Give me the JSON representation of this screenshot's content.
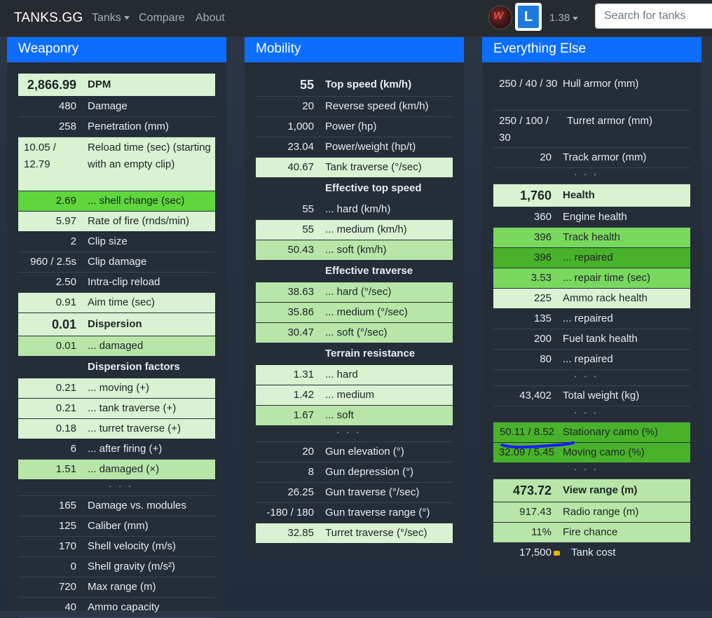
{
  "navbar": {
    "brand": "TANKS.GG",
    "tanks": "Tanks",
    "compare": "Compare",
    "about": "About",
    "l_badge": "L",
    "version": "1.38",
    "search_placeholder": "Search for tanks",
    "icons": [
      "wargaming-logo-icon",
      "caret-down-icon"
    ]
  },
  "colors": {
    "brand_blue": "#0d6efd",
    "highlight_pale": "#d8f2d2",
    "highlight_light": "#b7e6a8",
    "highlight_mid": "#79d85e",
    "highlight_bright": "#5ed63c",
    "highlight_dark": "#48b32a",
    "annotation": "#1a1aff"
  },
  "weaponry": {
    "title": "Weaponry",
    "rows": [
      {
        "value": "2,866.99",
        "label": "DPM"
      },
      {
        "value": "480",
        "label": "Damage"
      },
      {
        "value": "258",
        "label": "Penetration (mm)"
      },
      {
        "value": "10.05 / 12.79",
        "label": "Reload time (sec) (starting with an empty clip)"
      },
      {
        "value": "2.69",
        "label": "... shell change (sec)"
      },
      {
        "value": "5.97",
        "label": "Rate of fire (rnds/min)"
      },
      {
        "value": "2",
        "label": "Clip size"
      },
      {
        "value": "960 / 2.5s",
        "label": "Clip damage"
      },
      {
        "value": "2.50",
        "label": "Intra-clip reload"
      },
      {
        "value": "0.91",
        "label": "Aim time (sec)"
      },
      {
        "value": "0.01",
        "label": "Dispersion"
      },
      {
        "value": "0.01",
        "label": "... damaged"
      },
      {
        "value": "",
        "label": "Dispersion factors"
      },
      {
        "value": "0.21",
        "label": "... moving (+)"
      },
      {
        "value": "0.21",
        "label": "... tank traverse (+)"
      },
      {
        "value": "0.18",
        "label": "... turret traverse (+)"
      },
      {
        "value": "6",
        "label": "... after firing (+)"
      },
      {
        "value": "1.51",
        "label": "... damaged (×)"
      },
      {
        "value": "",
        "label": "· · ·"
      },
      {
        "value": "165",
        "label": "Damage vs. modules"
      },
      {
        "value": "125",
        "label": "Caliber (mm)"
      },
      {
        "value": "170",
        "label": "Shell velocity (m/s)"
      },
      {
        "value": "0",
        "label": "Shell gravity (m/s²)"
      },
      {
        "value": "720",
        "label": "Max range (m)"
      },
      {
        "value": "40",
        "label": "Ammo capacity"
      }
    ]
  },
  "mobility": {
    "title": "Mobility",
    "rows": [
      {
        "value": "55",
        "label": "Top speed (km/h)"
      },
      {
        "value": "20",
        "label": "Reverse speed (km/h)"
      },
      {
        "value": "1,000",
        "label": "Power (hp)"
      },
      {
        "value": "23.04",
        "label": "Power/weight (hp/t)"
      },
      {
        "value": "40.67",
        "label": "Tank traverse (°/sec)"
      },
      {
        "value": "",
        "label": "Effective top speed"
      },
      {
        "value": "55",
        "label": "... hard (km/h)"
      },
      {
        "value": "55",
        "label": "... medium (km/h)"
      },
      {
        "value": "50.43",
        "label": "... soft (km/h)"
      },
      {
        "value": "",
        "label": "Effective traverse"
      },
      {
        "value": "38.63",
        "label": "... hard (°/sec)"
      },
      {
        "value": "35.86",
        "label": "... medium (°/sec)"
      },
      {
        "value": "30.47",
        "label": "... soft (°/sec)"
      },
      {
        "value": "",
        "label": "Terrain resistance"
      },
      {
        "value": "1.31",
        "label": "... hard"
      },
      {
        "value": "1.42",
        "label": "... medium"
      },
      {
        "value": "1.67",
        "label": "... soft"
      },
      {
        "value": "",
        "label": "· · ·"
      },
      {
        "value": "20",
        "label": "Gun elevation (°)"
      },
      {
        "value": "8",
        "label": "Gun depression (°)"
      },
      {
        "value": "26.25",
        "label": "Gun traverse (°/sec)"
      },
      {
        "value": "-180 / 180",
        "label": "Gun traverse range (°)"
      },
      {
        "value": "32.85",
        "label": "Turret traverse (°/sec)"
      }
    ]
  },
  "everything_else": {
    "title": "Everything Else",
    "rows": [
      {
        "value": "250 / 40 / 30",
        "label": "Hull armor (mm)"
      },
      {
        "value": "250 / 100 / 30",
        "label": "Turret armor (mm)"
      },
      {
        "value": "20",
        "label": "Track armor (mm)"
      },
      {
        "value": "",
        "label": "· · ·"
      },
      {
        "value": "1,760",
        "label": "Health"
      },
      {
        "value": "360",
        "label": "Engine health"
      },
      {
        "value": "396",
        "label": "Track health"
      },
      {
        "value": "396",
        "label": "... repaired"
      },
      {
        "value": "3.53",
        "label": "... repair time (sec)"
      },
      {
        "value": "225",
        "label": "Ammo rack health"
      },
      {
        "value": "135",
        "label": "... repaired"
      },
      {
        "value": "200",
        "label": "Fuel tank health"
      },
      {
        "value": "80",
        "label": "... repaired"
      },
      {
        "value": "",
        "label": "· · ·"
      },
      {
        "value": "43,402",
        "label": "Total weight (kg)"
      },
      {
        "value": "",
        "label": "· · ·"
      },
      {
        "value": "50.11 / 8.52",
        "label": "Stationary camo (%)"
      },
      {
        "value": "32.09 / 5.45",
        "label": "Moving camo (%)"
      },
      {
        "value": "",
        "label": "· · ·"
      },
      {
        "value": "473.72",
        "label": "View range (m)"
      },
      {
        "value": "917.43",
        "label": "Radio range (m)"
      },
      {
        "value": "11%",
        "label": "Fire chance"
      },
      {
        "value": "17,500",
        "label": "Tank cost"
      }
    ]
  }
}
